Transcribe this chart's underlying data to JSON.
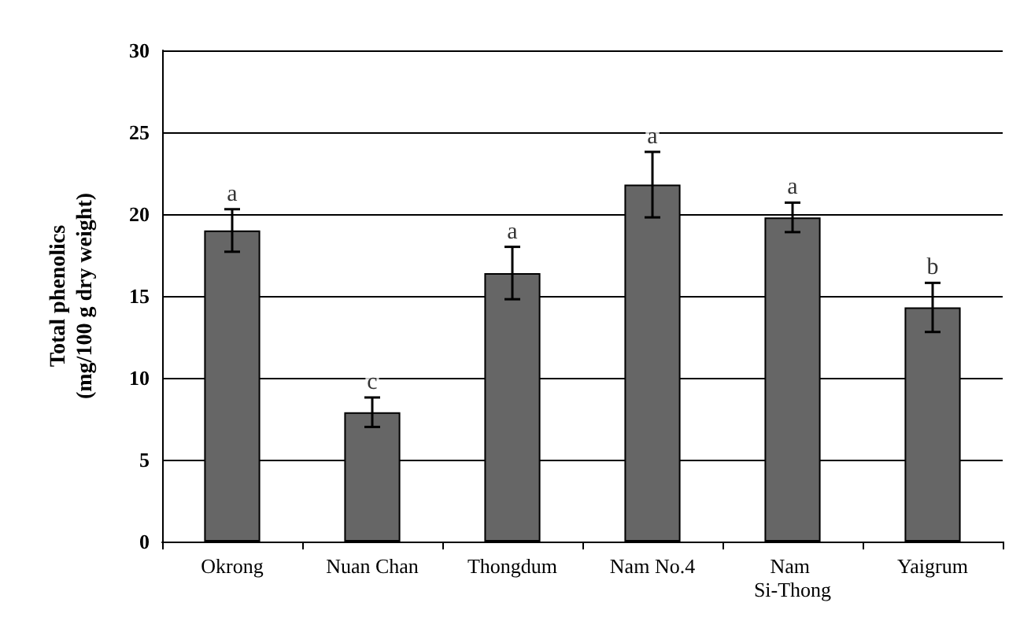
{
  "chart_data": {
    "type": "bar",
    "ylabel": "Total phenolics\n(mg/100 g dry weight)",
    "categories": [
      "Okrong",
      "Nuan Chan",
      "Thongdum",
      "Nam No.4",
      "Nam Si-Thong",
      "Yaigrum"
    ],
    "values": [
      19.0,
      7.9,
      16.4,
      21.8,
      19.8,
      14.3
    ],
    "errors": [
      1.3,
      0.9,
      1.6,
      2.0,
      0.9,
      1.5
    ],
    "color": "#666666",
    "ylim": [
      0,
      30
    ],
    "yticks": [
      0,
      5,
      10,
      15,
      20,
      25,
      30
    ],
    "grid": "y",
    "annotations": [
      {
        "text": "a",
        "x": "Okrong",
        "y": 20.3
      },
      {
        "text": "c",
        "x": "Nuan Chan",
        "y": 8.8
      },
      {
        "text": "a",
        "x": "Thongdum",
        "y": 18.0
      },
      {
        "text": "a",
        "x": "Nam No.4",
        "y": 23.8
      },
      {
        "text": "a",
        "x": "Nam Si-Thong",
        "y": 20.7
      },
      {
        "text": "b",
        "x": "Yaigrum",
        "y": 15.8
      }
    ]
  }
}
